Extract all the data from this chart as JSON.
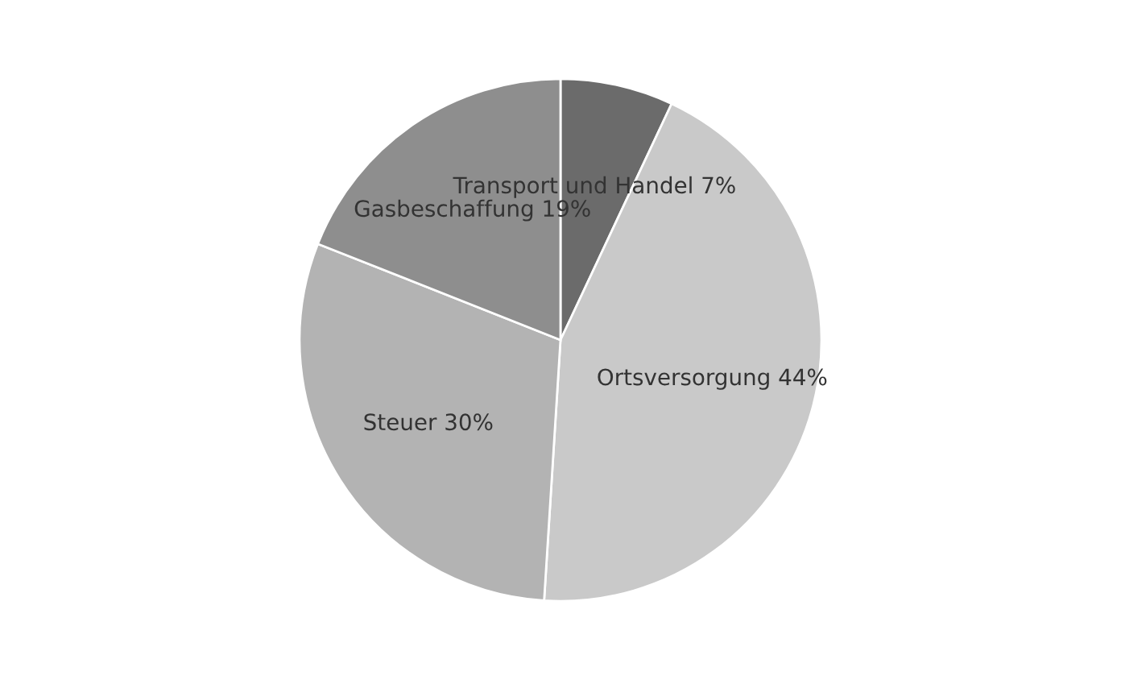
{
  "chart_data": {
    "type": "pie",
    "categories": [
      "Transport und Handel 7%",
      "Ortsversorgung 44%",
      "Steuer 30%",
      "Gasbeschaffung 19%"
    ],
    "values": [
      7,
      44,
      30,
      19
    ],
    "colors": [
      "#6b6b6b",
      "#c9c9c9",
      "#b3b3b3",
      "#8e8e8e"
    ]
  }
}
